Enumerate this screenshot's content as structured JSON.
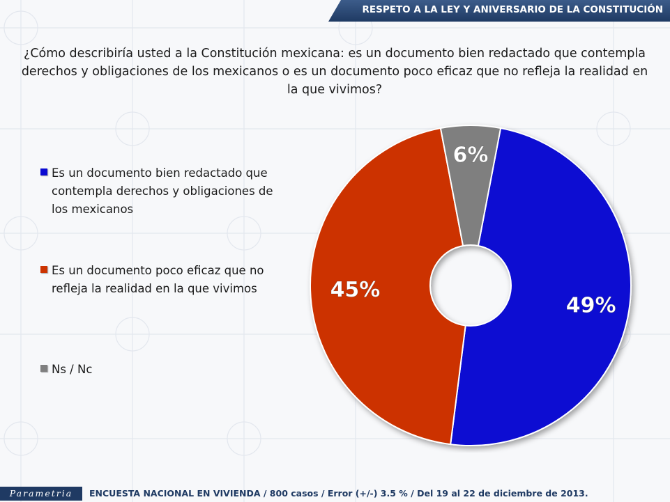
{
  "header": {
    "title": "RESPETO A LA LEY Y ANIVERSARIO DE LA CONSTITUCIÓN"
  },
  "question": "¿Cómo describiría usted a la Constitución mexicana: es un documento bien redactado que contempla derechos y obligaciones de los mexicanos o es un documento poco eficaz que no refleja la realidad en la que vivimos?",
  "legend": {
    "items": [
      {
        "label": "Es un documento bien redactado que contempla derechos y obligaciones de los mexicanos",
        "color": "#0a0ad2"
      },
      {
        "label": "Es un documento poco eficaz que no refleja la realidad en la que vivimos",
        "color": "#cc3300"
      },
      {
        "label": "Ns / Nc",
        "color": "#7f7f7f"
      }
    ]
  },
  "chart_data": {
    "type": "pie",
    "donut": true,
    "categories": [
      "Es un documento bien redactado que contempla derechos y obligaciones de los mexicanos",
      "Es un documento poco eficaz que no refleja la realidad en la que vivimos",
      "Ns / Nc"
    ],
    "values": [
      49,
      45,
      6
    ],
    "data_labels": [
      "49%",
      "45%",
      "6%"
    ],
    "colors": [
      "#0a0ad2",
      "#cc3300",
      "#7f7f7f"
    ],
    "legend_position": "left"
  },
  "footer": {
    "logo": "Parametria",
    "text": "ENCUESTA NACIONAL EN VIVIENDA / 800 casos / Error (+/-) 3.5 % / Del 19 al 22 de diciembre de 2013."
  }
}
